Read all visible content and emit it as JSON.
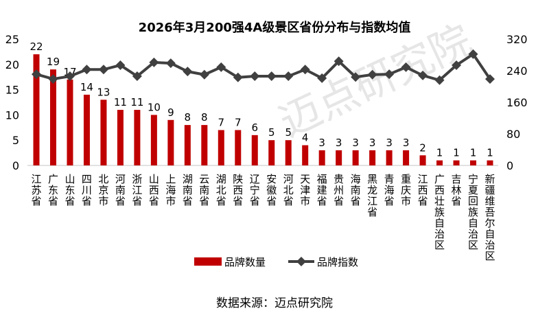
{
  "chart_data": {
    "type": "bar+line",
    "title": "2026年3月200强4A级景区省份分布与指数均值",
    "categories": [
      "江苏省",
      "广东省",
      "山东省",
      "四川省",
      "北京市",
      "河南省",
      "浙江省",
      "山西省",
      "上海市",
      "湖南省",
      "云南省",
      "湖北省",
      "陕西省",
      "辽宁省",
      "安徽省",
      "河北省",
      "天津市",
      "福建省",
      "贵州省",
      "海南省",
      "黑龙江省",
      "青海省",
      "重庆市",
      "江西省",
      "广西壮族自治区",
      "吉林省",
      "宁夏回族自治区",
      "新疆维吾尔自治区"
    ],
    "series": [
      {
        "name": "品牌数量",
        "type": "bar",
        "axis": "left",
        "color": "#c00000",
        "values": [
          22,
          19,
          17,
          14,
          13,
          11,
          11,
          10,
          9,
          8,
          8,
          7,
          7,
          6,
          5,
          5,
          4,
          3,
          3,
          3,
          3,
          3,
          3,
          2,
          1,
          1,
          1,
          1
        ]
      },
      {
        "name": "品牌指数",
        "type": "line",
        "axis": "right",
        "color": "#404040",
        "values": [
          231,
          219,
          226,
          243,
          243,
          254,
          226,
          261,
          259,
          238,
          230,
          249,
          223,
          226,
          226,
          226,
          243,
          221,
          264,
          224,
          230,
          231,
          249,
          228,
          216,
          254,
          282,
          219
        ]
      }
    ],
    "left_axis": {
      "range": [
        0,
        25
      ],
      "ticks": [
        0,
        5,
        10,
        15,
        20,
        25
      ]
    },
    "right_axis": {
      "range": [
        0,
        320
      ],
      "ticks": [
        0,
        80,
        160,
        240,
        320
      ]
    },
    "legend_placement": "bottom",
    "grid": false
  },
  "source": "数据来源：迈点研究院",
  "watermark": "迈点研究院 ACADEMY"
}
